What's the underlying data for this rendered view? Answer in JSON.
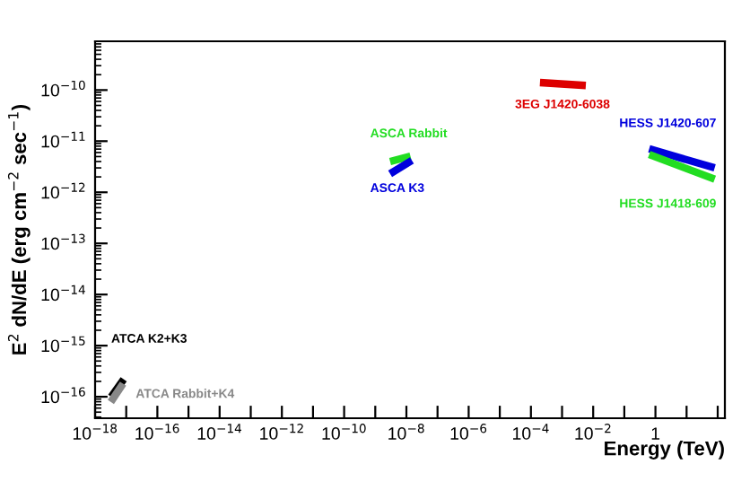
{
  "chart_data": {
    "type": "line",
    "log": "xy",
    "xlabel": "Energy (TeV)",
    "ylabel": "E$^{2}$ dN/dE (erg cm$^{−2}$ sec$^{−1}$)",
    "xlim": [
      1e-18,
      170
    ],
    "ylim": [
      3.8e-17,
      9e-10
    ],
    "xticks": [
      {
        "value": 1e-18,
        "label": "10$^{−18}$"
      },
      {
        "value": 1e-17,
        "label": null
      },
      {
        "value": 1e-16,
        "label": "10$^{−16}$"
      },
      {
        "value": 1e-15,
        "label": null
      },
      {
        "value": 1e-14,
        "label": "10$^{−14}$"
      },
      {
        "value": 1e-13,
        "label": null
      },
      {
        "value": 1e-12,
        "label": "10$^{−12}$"
      },
      {
        "value": 1e-11,
        "label": null
      },
      {
        "value": 1e-10,
        "label": "10$^{−10}$"
      },
      {
        "value": 1e-09,
        "label": null
      },
      {
        "value": 1e-08,
        "label": "10$^{−8}$"
      },
      {
        "value": 1e-07,
        "label": null
      },
      {
        "value": 1e-06,
        "label": "10$^{−6}$"
      },
      {
        "value": 1e-05,
        "label": null
      },
      {
        "value": 0.0001,
        "label": "10$^{−4}$"
      },
      {
        "value": 0.001,
        "label": null
      },
      {
        "value": 0.01,
        "label": "10$^{−2}$"
      },
      {
        "value": 0.1,
        "label": null
      },
      {
        "value": 1,
        "label": "1"
      },
      {
        "value": 10,
        "label": null
      },
      {
        "value": 100,
        "label": null
      }
    ],
    "yticks": [
      {
        "value": 1e-16,
        "label": "10$^{−16}$"
      },
      {
        "value": 1e-15,
        "label": "10$^{−15}$"
      },
      {
        "value": 1e-14,
        "label": "10$^{−14}$"
      },
      {
        "value": 1e-13,
        "label": "10$^{−13}$"
      },
      {
        "value": 1e-12,
        "label": "10$^{−12}$"
      },
      {
        "value": 1e-11,
        "label": "10$^{−11}$"
      },
      {
        "value": 1e-10,
        "label": "10$^{−10}$"
      }
    ],
    "grid": false,
    "legend": false,
    "marker": "none",
    "line_style": "solid",
    "series": [
      {
        "name": "ATCA K2+K3",
        "color": "#000000",
        "x": [
          3.3e-18,
          8.3e-18
        ],
        "values": [
          1e-16,
          2.2e-16
        ]
      },
      {
        "name": "ATCA Rabbit+K4",
        "color": "#888888",
        "x": [
          3.2e-18,
          7.9e-18
        ],
        "values": [
          7.9e-17,
          1.8e-16
        ]
      },
      {
        "name": "ASCA Rabbit",
        "color": "#22dd22",
        "x": [
          3e-09,
          1.35e-08
        ],
        "values": [
          4e-12,
          5.1e-12
        ]
      },
      {
        "name": "ASCA K3",
        "color": "#0000dd",
        "x": [
          3e-09,
          1.5e-08
        ],
        "values": [
          2.3e-12,
          4.2e-12
        ]
      },
      {
        "name": "3EG J1420-6038",
        "color": "#dd0000",
        "x": [
          0.000195,
          0.0058
        ],
        "values": [
          1.4e-10,
          1.23e-10
        ]
      },
      {
        "name": "HESS J1420-607",
        "color": "#0000dd",
        "x": [
          0.63,
          80
        ],
        "values": [
          7.1e-12,
          3e-12
        ]
      },
      {
        "name": "HESS J1418-609",
        "color": "#22dd22",
        "x": [
          0.63,
          80
        ],
        "values": [
          5.5e-12,
          1.8e-12
        ]
      }
    ]
  }
}
